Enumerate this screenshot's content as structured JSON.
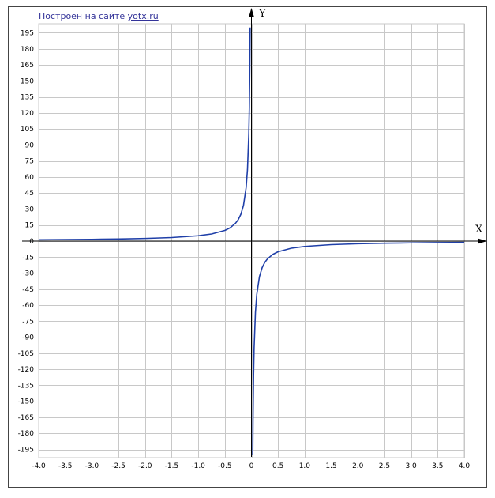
{
  "credit": {
    "text": "Построен на сайте",
    "link": "yotx.ru"
  },
  "chart_data": {
    "type": "line",
    "function": "y = -5/x",
    "xlabel": "X",
    "ylabel": "Y",
    "xlim": [
      -4.0,
      4.0
    ],
    "ylim": [
      -200,
      200
    ],
    "x_ticks": [
      "-4.0",
      "-3.5",
      "-3.0",
      "-2.5",
      "-2.0",
      "-1.5",
      "-1.0",
      "-0.5",
      "0",
      "0.5",
      "1.0",
      "1.5",
      "2.0",
      "2.5",
      "3.0",
      "3.5",
      "4.0"
    ],
    "x_tick_values": [
      -4.0,
      -3.5,
      -3.0,
      -2.5,
      -2.0,
      -1.5,
      -1.0,
      -0.5,
      0,
      0.5,
      1.0,
      1.5,
      2.0,
      2.5,
      3.0,
      3.5,
      4.0
    ],
    "y_ticks": [
      "195",
      "180",
      "165",
      "150",
      "135",
      "120",
      "105",
      "90",
      "75",
      "60",
      "45",
      "30",
      "15",
      "0",
      "-15",
      "-30",
      "-45",
      "-60",
      "-75",
      "-90",
      "-105",
      "-120",
      "-135",
      "-150",
      "-165",
      "-180",
      "-195"
    ],
    "y_tick_values": [
      195,
      180,
      165,
      150,
      135,
      120,
      105,
      90,
      75,
      60,
      45,
      30,
      15,
      0,
      -15,
      -30,
      -45,
      -60,
      -75,
      -90,
      -105,
      -120,
      -135,
      -150,
      -165,
      -180,
      -195
    ],
    "grid": true,
    "series": [
      {
        "color": "#1f3fa8",
        "x": [
          -4.0,
          -3.5,
          -3.0,
          -2.5,
          -2.0,
          -1.5,
          -1.0,
          -0.75,
          -0.5,
          -0.4,
          -0.3,
          -0.25,
          -0.2,
          -0.15,
          -0.1,
          -0.075,
          -0.05,
          -0.04,
          -0.03,
          -0.025
        ],
        "y": [
          1.25,
          1.43,
          1.67,
          2.0,
          2.5,
          3.33,
          5.0,
          6.67,
          10.0,
          12.5,
          16.7,
          20.0,
          25.0,
          33.3,
          50.0,
          66.7,
          100.0,
          125.0,
          166.7,
          200.0
        ]
      },
      {
        "color": "#1f3fa8",
        "x": [
          0.025,
          0.03,
          0.04,
          0.05,
          0.075,
          0.1,
          0.15,
          0.2,
          0.25,
          0.3,
          0.4,
          0.5,
          0.75,
          1.0,
          1.5,
          2.0,
          2.5,
          3.0,
          3.5,
          4.0
        ],
        "y": [
          -200.0,
          -166.7,
          -125.0,
          -100.0,
          -66.7,
          -50.0,
          -33.3,
          -25.0,
          -20.0,
          -16.7,
          -12.5,
          -10.0,
          -6.67,
          -5.0,
          -3.33,
          -2.5,
          -2.0,
          -1.67,
          -1.43,
          -1.25
        ]
      }
    ]
  }
}
